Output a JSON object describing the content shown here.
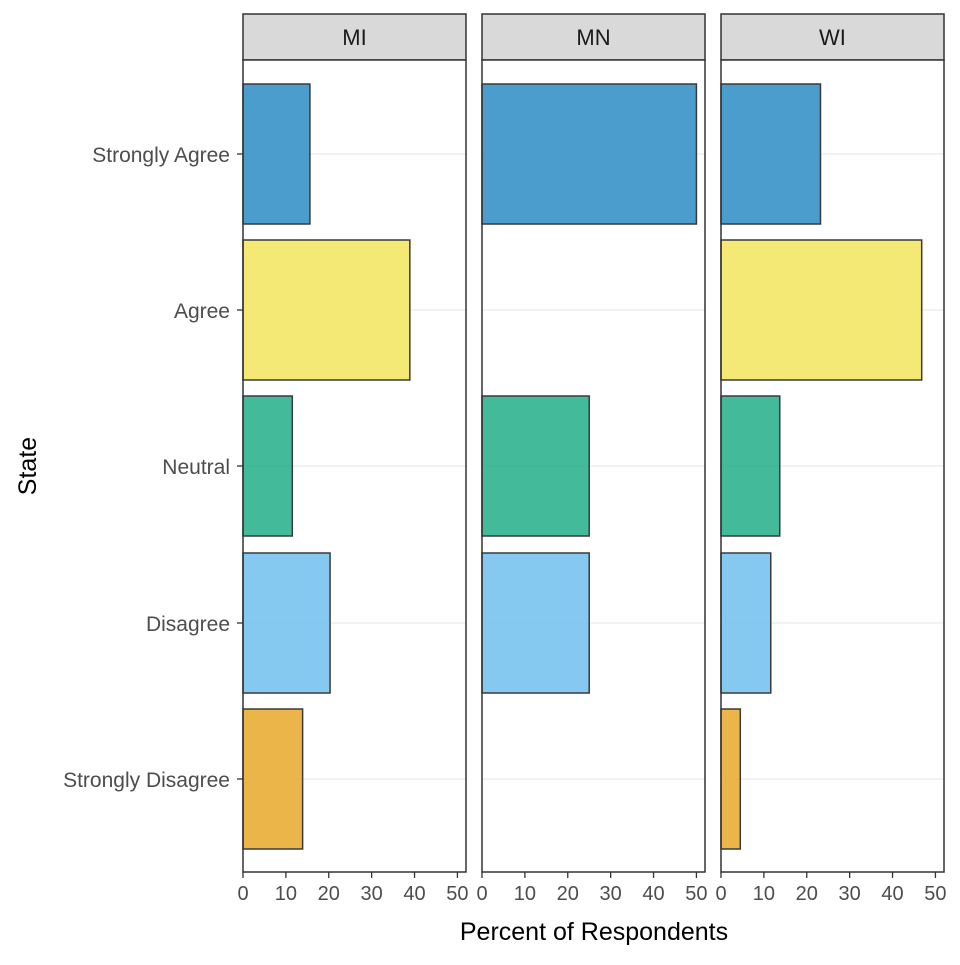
{
  "chart_data": {
    "type": "bar",
    "orientation": "horizontal",
    "xlabel": "Percent of Respondents",
    "ylabel": "State",
    "xlim": [
      0,
      52
    ],
    "xticks": [
      0,
      10,
      20,
      30,
      40,
      50
    ],
    "grid": "horizontal major lines",
    "categories": [
      "Strongly Agree",
      "Agree",
      "Neutral",
      "Disagree",
      "Strongly Disagree"
    ],
    "category_colors": [
      "#2B8CC4",
      "#F3E55D",
      "#22AE88",
      "#70BFEE",
      "#E9A82A"
    ],
    "panels": [
      {
        "name": "MI",
        "values": [
          15.6,
          38.9,
          11.5,
          20.3,
          13.9
        ]
      },
      {
        "name": "MN",
        "values": [
          50.0,
          0,
          25.0,
          25.0,
          0
        ]
      },
      {
        "name": "WI",
        "values": [
          23.2,
          46.8,
          13.7,
          11.6,
          4.5
        ]
      }
    ]
  }
}
